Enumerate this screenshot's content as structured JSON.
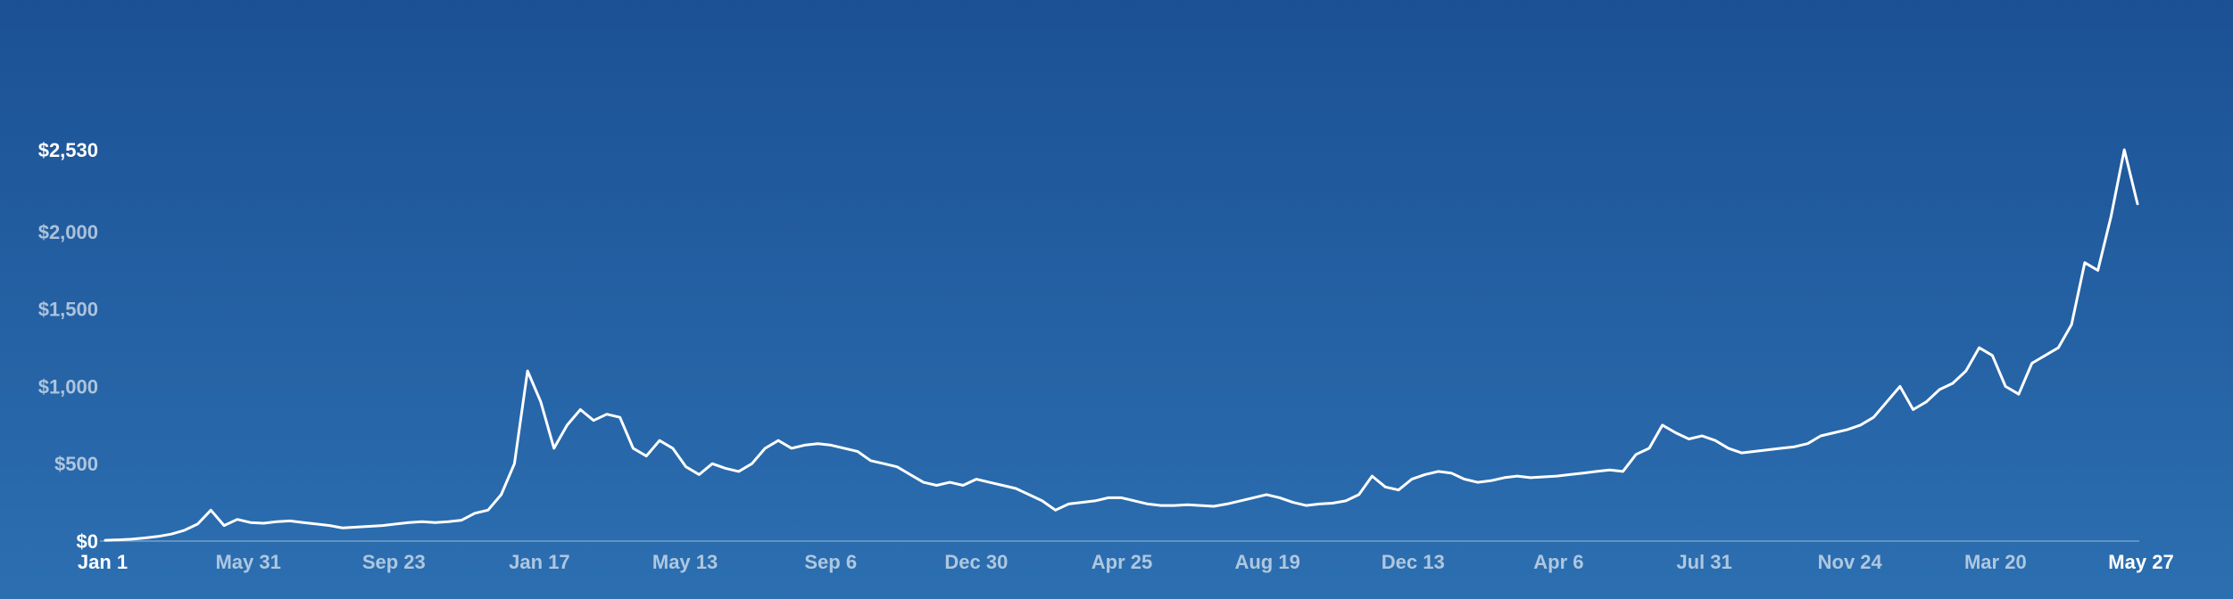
{
  "chart_data": {
    "type": "line",
    "series": [
      {
        "values": [
          5,
          8,
          12,
          20,
          30,
          45,
          70,
          110,
          200,
          100,
          140,
          120,
          115,
          125,
          130,
          120,
          110,
          100,
          85,
          90,
          95,
          100,
          110,
          120,
          125,
          120,
          125,
          135,
          180,
          200,
          300,
          500,
          1100,
          900,
          600,
          750,
          850,
          780,
          820,
          800,
          600,
          550,
          650,
          600,
          480,
          430,
          500,
          470,
          450,
          500,
          600,
          650,
          600,
          620,
          630,
          620,
          600,
          580,
          520,
          500,
          480,
          430,
          380,
          360,
          380,
          360,
          400,
          380,
          360,
          340,
          300,
          260,
          200,
          240,
          250,
          260,
          280,
          280,
          260,
          240,
          230,
          230,
          235,
          230,
          225,
          240,
          260,
          280,
          300,
          280,
          250,
          230,
          240,
          245,
          260,
          300,
          420,
          350,
          330,
          400,
          430,
          450,
          440,
          400,
          380,
          390,
          410,
          420,
          410,
          415,
          420,
          430,
          440,
          450,
          460,
          450,
          560,
          600,
          750,
          700,
          660,
          680,
          650,
          600,
          570,
          580,
          590,
          600,
          610,
          630,
          680,
          700,
          720,
          750,
          800,
          900,
          1000,
          850,
          900,
          980,
          1020,
          1100,
          1250,
          1200,
          1000,
          950,
          1150,
          1200,
          1250,
          1400,
          1800,
          1750,
          2100,
          2530,
          2180
        ]
      }
    ],
    "x_ticks": [
      "Jan 1",
      "May 31",
      "Sep 23",
      "Jan 17",
      "May 13",
      "Sep 6",
      "Dec 30",
      "Apr 25",
      "Aug 19",
      "Dec 13",
      "Apr 6",
      "Jul 31",
      "Nov 24",
      "Mar 20",
      "May 27"
    ],
    "y_ticks": [
      "$0",
      "$500",
      "$1,000",
      "$1,500",
      "$2,000",
      "$2,530"
    ],
    "y_tick_values": [
      0,
      500,
      1000,
      1500,
      2000,
      2530
    ],
    "ylim": [
      0,
      2530
    ],
    "grid": false,
    "colors": {
      "line": "#ffffff",
      "bg_top": "#1b5194",
      "bg_bottom": "#2c6fb1"
    }
  }
}
